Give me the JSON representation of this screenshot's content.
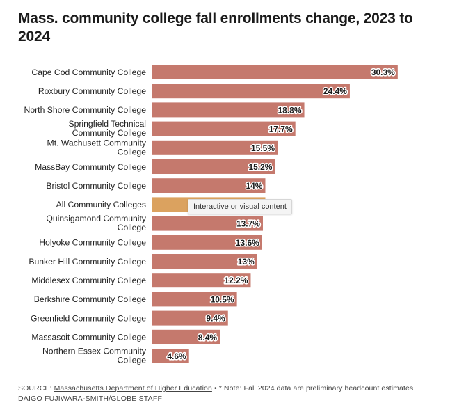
{
  "title": "Mass. community college fall enrollments change, 2023 to 2024",
  "tooltip": "Interactive or visual content",
  "source": {
    "prefix": "SOURCE: ",
    "link_text": "Massachusetts Department of Higher Education",
    "note": " • * Note: Fall 2024 data are preliminary headcount estimates"
  },
  "credit": "DAIGO FUJIWARA-SMITH/GLOBE STAFF",
  "colors": {
    "bar": "#c5796d",
    "highlight": "#dba25f"
  },
  "chart_data": {
    "type": "bar",
    "orientation": "horizontal",
    "title": "Mass. community college fall enrollments change, 2023 to 2024",
    "xlabel": "",
    "ylabel": "",
    "xlim": [
      0,
      31
    ],
    "grid": false,
    "categories": [
      "Cape Cod Community College",
      "Roxbury Community College",
      "North Shore Community College",
      "Springfield Technical Community College",
      "Mt. Wachusett Community College",
      "MassBay Community College",
      "Bristol Community College",
      "All Community Colleges",
      "Quinsigamond Community College",
      "Holyoke Community College",
      "Bunker Hill Community College",
      "Middlesex Community College",
      "Berkshire Community College",
      "Greenfield Community College",
      "Massasoit Community College",
      "Northern Essex Community College"
    ],
    "label_lines": [
      [
        "Cape Cod Community College"
      ],
      [
        "Roxbury Community College"
      ],
      [
        "North Shore Community College"
      ],
      [
        "Springfield Technical",
        "Community College"
      ],
      [
        "Mt. Wachusett Community",
        "College"
      ],
      [
        "MassBay Community College"
      ],
      [
        "Bristol Community College"
      ],
      [
        "All Community Colleges"
      ],
      [
        "Quinsigamond Community",
        "College"
      ],
      [
        "Holyoke Community College"
      ],
      [
        "Bunker Hill Community College"
      ],
      [
        "Middlesex Community College"
      ],
      [
        "Berkshire Community College"
      ],
      [
        "Greenfield Community College"
      ],
      [
        "Massasoit Community College"
      ],
      [
        "Northern Essex Community",
        "College"
      ]
    ],
    "values": [
      30.3,
      24.4,
      18.8,
      17.7,
      15.5,
      15.2,
      14,
      14,
      13.7,
      13.6,
      13,
      12.2,
      10.5,
      9.4,
      8.4,
      4.6
    ],
    "value_labels": [
      "30.3%",
      "24.4%",
      "18.8%",
      "17.7%",
      "15.5%",
      "15.2%",
      "14%",
      "",
      "13.7%",
      "13.6%",
      "13%",
      "12.2%",
      "10.5%",
      "9.4%",
      "8.4%",
      "4.6%"
    ],
    "highlight_index": 7
  }
}
